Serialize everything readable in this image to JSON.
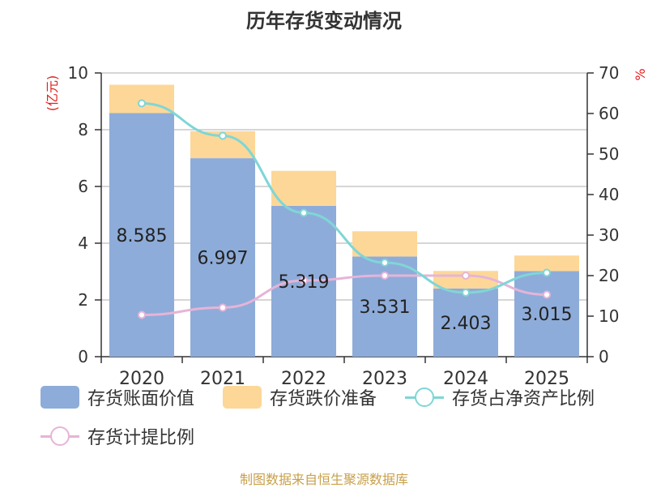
{
  "title": "历年存货变动情况",
  "source": "制图数据来自恒生聚源数据库",
  "colors": {
    "book_value": "#8eacd9",
    "impairment": "#fdd797",
    "ratio_net_assets": "#7fd6d6",
    "provision_ratio": "#e6b4d8",
    "axis_label": "#e02020"
  },
  "chart_data": {
    "type": "bar",
    "title": "历年存货变动情况",
    "categories": [
      "2020",
      "2021",
      "2022",
      "2023",
      "2024",
      "2025"
    ],
    "ylabel_left": "(亿元)",
    "ylabel_right": "%",
    "ylim_left": [
      0,
      10
    ],
    "yticks_left": [
      0,
      2,
      4,
      6,
      8,
      10
    ],
    "ylim_right": [
      0,
      70
    ],
    "yticks_right": [
      0,
      10,
      20,
      30,
      40,
      50,
      60,
      70
    ],
    "grid": true,
    "legend_position": "bottom",
    "bar_series": [
      {
        "name": "存货账面价值",
        "values": [
          8.585,
          6.997,
          5.319,
          3.531,
          2.403,
          3.015
        ],
        "labels": [
          "8.585",
          "6.997",
          "5.319",
          "3.531",
          "2.403",
          "3.015"
        ]
      },
      {
        "name": "存货跌价准备",
        "values": [
          1.0,
          0.95,
          1.23,
          0.89,
          0.62,
          0.55
        ]
      }
    ],
    "line_series": [
      {
        "name": "存货占净资产比例",
        "axis": "right",
        "values": [
          62.5,
          54.5,
          35.5,
          23.2,
          15.8,
          20.7
        ]
      },
      {
        "name": "存货计提比例",
        "axis": "right",
        "values": [
          10.3,
          12.1,
          18.8,
          20.0,
          20.0,
          15.3
        ]
      }
    ]
  }
}
